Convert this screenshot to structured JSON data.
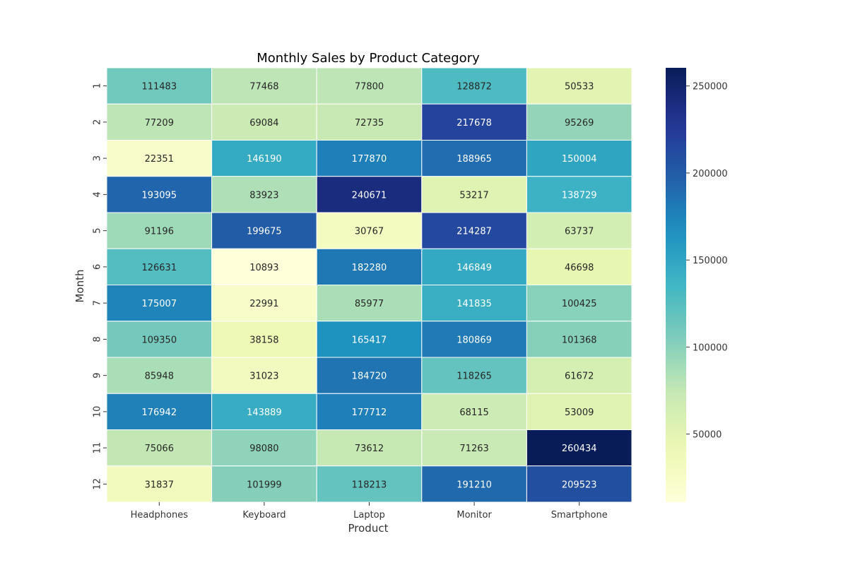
{
  "chart_data": {
    "type": "heatmap",
    "title": "Monthly Sales by Product Category",
    "xlabel": "Product",
    "ylabel": "Month",
    "x_categories": [
      "Headphones",
      "Keyboard",
      "Laptop",
      "Monitor",
      "Smartphone"
    ],
    "y_categories": [
      "1",
      "2",
      "3",
      "4",
      "5",
      "6",
      "7",
      "8",
      "9",
      "10",
      "11",
      "12"
    ],
    "values": [
      [
        111483,
        77468,
        77800,
        128872,
        50533
      ],
      [
        77209,
        69084,
        72735,
        217678,
        95269
      ],
      [
        22351,
        146190,
        177870,
        188965,
        150004
      ],
      [
        193095,
        83923,
        240671,
        53217,
        138729
      ],
      [
        91196,
        199675,
        30767,
        214287,
        63737
      ],
      [
        126631,
        10893,
        182280,
        146849,
        46698
      ],
      [
        175007,
        22991,
        85977,
        141835,
        100425
      ],
      [
        109350,
        38158,
        165417,
        180869,
        101368
      ],
      [
        85948,
        31023,
        184720,
        118265,
        61672
      ],
      [
        176942,
        143889,
        177712,
        68115,
        53009
      ],
      [
        75066,
        98080,
        73612,
        71263,
        260434
      ],
      [
        31837,
        101999,
        118213,
        191210,
        209523
      ]
    ],
    "colormap": "YlGnBu",
    "color_range": [
      10893,
      260434
    ],
    "colorbar_ticks": [
      50000,
      100000,
      150000,
      200000,
      250000
    ],
    "annotated": true,
    "legend_placement": "right"
  }
}
